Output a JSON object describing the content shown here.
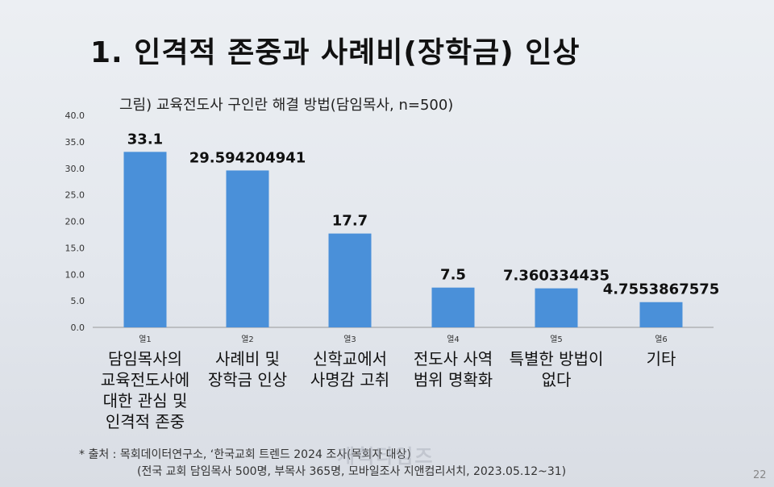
{
  "title": "1. 인격적 존중과 사례비(장학금) 인상",
  "subtitle": "그림) 교육전도사 구인란 해결 방법(담임목사, n=500)",
  "chart_data": {
    "type": "bar",
    "categories": [
      "열1",
      "열2",
      "열3",
      "열4",
      "열5",
      "열6"
    ],
    "values": [
      33.1,
      29.594204941,
      17.7,
      7.5,
      7.360334435,
      4.7553867575
    ],
    "value_labels": [
      "33.1",
      "29.594204941",
      "17.7",
      "7.5",
      "7.360334435",
      "4.7553867575"
    ],
    "category_descriptions": [
      "담임목사의\n교육전도사에\n대한 관심 및\n인격적 존중",
      "사례비 및\n장학금 인상",
      "신학교에서\n사명감 고취",
      "전도사 사역\n범위 명확화",
      "특별한 방법이\n없다",
      "기타"
    ],
    "yticks": [
      "0.0",
      "5.0",
      "10.0",
      "15.0",
      "20.0",
      "25.0",
      "30.0",
      "35.0",
      "40.0"
    ],
    "ylim": [
      0,
      40
    ],
    "bar_color": "#4a90d9",
    "grid": false
  },
  "source": {
    "line1": "* 출처 : 목회데이터연구소, ‘한국교회 트렌드 2024 조사(목회자 대상)",
    "line2": "(전국 교회 담임목사 500명, 부목사 365명, 모바일조사 지앤컴리서치, 2023.05.12~31)"
  },
  "watermark": "개혁타임즈",
  "page_number": "22"
}
